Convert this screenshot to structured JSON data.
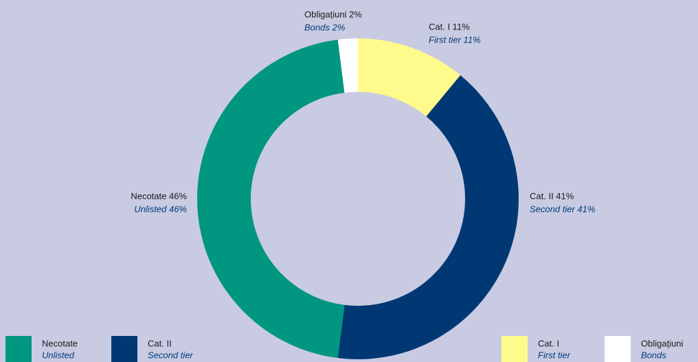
{
  "chart_data": {
    "type": "donut",
    "categories": [
      "Cat. I",
      "Cat. II",
      "Necotate",
      "Obligațiuni"
    ],
    "categories_en": [
      "First tier",
      "Second tier",
      "Unlisted",
      "Bonds"
    ],
    "values": [
      11,
      41,
      46,
      2
    ],
    "value_labels": [
      "Cat. I 11%",
      "Cat. II 41%",
      "Necotate 46%",
      "Obligațiuni 2%"
    ],
    "value_labels_en": [
      "First tier 11%",
      "Second tier 41%",
      "Unlisted 46%",
      "Bonds 2%"
    ],
    "colors": [
      "#fffa8c",
      "#003873",
      "#00967f",
      "#ffffff"
    ]
  }
}
